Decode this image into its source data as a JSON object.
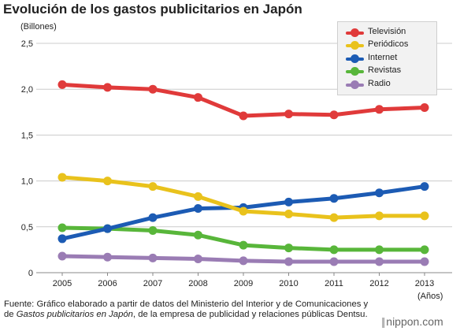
{
  "chart_data": {
    "type": "line",
    "title": "Evolución de los gastos publicitarios en Japón",
    "ylabel": "(Billones)",
    "xlabel": "(Años)",
    "x": [
      "2005",
      "2006",
      "2007",
      "2008",
      "2009",
      "2010",
      "2011",
      "2012",
      "2013"
    ],
    "ylim": [
      0,
      2.5
    ],
    "yticks": [
      "0",
      "0,5",
      "1,0",
      "1,5",
      "2,0",
      "2,5"
    ],
    "grid": true,
    "legend_position": "top-right",
    "series": [
      {
        "name": "Televisión",
        "color": "#e03a3a",
        "values": [
          2.05,
          2.02,
          2.0,
          1.91,
          1.71,
          1.73,
          1.72,
          1.78,
          1.8
        ]
      },
      {
        "name": "Periódicos",
        "color": "#e9c21c",
        "values": [
          1.04,
          1.0,
          0.94,
          0.83,
          0.67,
          0.64,
          0.6,
          0.62,
          0.62
        ]
      },
      {
        "name": "Internet",
        "color": "#1c5bb4",
        "values": [
          0.37,
          0.48,
          0.6,
          0.7,
          0.71,
          0.77,
          0.81,
          0.87,
          0.94
        ]
      },
      {
        "name": "Revistas",
        "color": "#58b63a",
        "values": [
          0.49,
          0.48,
          0.46,
          0.41,
          0.3,
          0.27,
          0.25,
          0.25,
          0.25
        ]
      },
      {
        "name": "Radio",
        "color": "#9a7cb4",
        "values": [
          0.18,
          0.17,
          0.16,
          0.15,
          0.13,
          0.12,
          0.12,
          0.12,
          0.12
        ]
      }
    ]
  },
  "source_prefix": "Fuente: Gráfico elaborado a partir de datos del Ministerio del Interior y de Comunicaciones y de ",
  "source_italic": "Gastos publicitarios en Japón",
  "source_suffix": ", de la empresa de publicidad y relaciones públicas Dentsu.",
  "brand": "nippon.com"
}
